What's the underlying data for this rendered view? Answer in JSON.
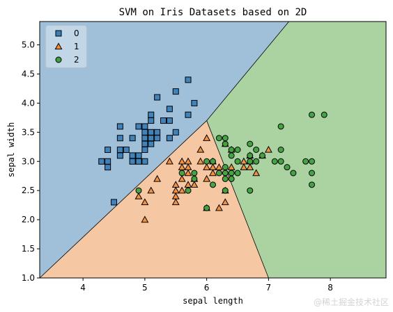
{
  "chart_data": {
    "type": "scatter",
    "title": "SVM on Iris Datasets based on 2D",
    "xlabel": "sepal length",
    "ylabel": "sepal width",
    "xlim": [
      3.3,
      8.9
    ],
    "ylim": [
      1.0,
      5.4
    ],
    "x_ticks": [
      4,
      5,
      6,
      7,
      8
    ],
    "y_ticks": [
      1.0,
      1.5,
      2.0,
      2.5,
      3.0,
      3.5,
      4.0,
      4.5,
      5.0
    ],
    "legend_position": "top-left",
    "decision_regions": [
      {
        "class": "0",
        "color": "#a0c0da",
        "polygon": [
          [
            3.3,
            1.0
          ],
          [
            3.3,
            5.4
          ],
          [
            7.33,
            5.4
          ],
          [
            6.0,
            3.7
          ]
        ]
      },
      {
        "class": "1",
        "color": "#f5c7a2",
        "polygon": [
          [
            3.3,
            1.0
          ],
          [
            6.0,
            3.7
          ],
          [
            7.0,
            1.0
          ]
        ]
      },
      {
        "class": "2",
        "color": "#abd3a2",
        "polygon": [
          [
            6.0,
            3.7
          ],
          [
            7.33,
            5.4
          ],
          [
            8.9,
            5.4
          ],
          [
            8.9,
            1.0
          ],
          [
            7.0,
            1.0
          ]
        ]
      }
    ],
    "series": [
      {
        "name": "0",
        "marker": "square",
        "color": "#3b7fb8",
        "points": [
          [
            4.3,
            3.0
          ],
          [
            4.4,
            2.9
          ],
          [
            4.4,
            3.0
          ],
          [
            4.4,
            3.2
          ],
          [
            4.5,
            2.3
          ],
          [
            4.6,
            3.1
          ],
          [
            4.6,
            3.2
          ],
          [
            4.6,
            3.4
          ],
          [
            4.6,
            3.6
          ],
          [
            4.7,
            3.2
          ],
          [
            4.8,
            3.0
          ],
          [
            4.8,
            3.1
          ],
          [
            4.8,
            3.4
          ],
          [
            4.9,
            3.0
          ],
          [
            4.9,
            3.1
          ],
          [
            4.9,
            3.6
          ],
          [
            5.0,
            3.0
          ],
          [
            5.0,
            3.2
          ],
          [
            5.0,
            3.3
          ],
          [
            5.0,
            3.4
          ],
          [
            5.0,
            3.5
          ],
          [
            5.0,
            3.6
          ],
          [
            5.1,
            3.3
          ],
          [
            5.1,
            3.4
          ],
          [
            5.1,
            3.5
          ],
          [
            5.1,
            3.7
          ],
          [
            5.1,
            3.8
          ],
          [
            5.2,
            3.4
          ],
          [
            5.2,
            3.5
          ],
          [
            5.2,
            4.1
          ],
          [
            5.3,
            3.7
          ],
          [
            5.4,
            3.4
          ],
          [
            5.4,
            3.7
          ],
          [
            5.4,
            3.9
          ],
          [
            5.5,
            3.5
          ],
          [
            5.5,
            4.2
          ],
          [
            5.7,
            3.8
          ],
          [
            5.7,
            4.4
          ],
          [
            5.8,
            4.0
          ]
        ]
      },
      {
        "name": "1",
        "marker": "triangle",
        "color": "#f28e3a",
        "points": [
          [
            4.9,
            2.4
          ],
          [
            5.0,
            2.0
          ],
          [
            5.0,
            2.3
          ],
          [
            5.1,
            2.5
          ],
          [
            5.2,
            2.7
          ],
          [
            5.4,
            3.0
          ],
          [
            5.5,
            2.3
          ],
          [
            5.5,
            2.4
          ],
          [
            5.5,
            2.5
          ],
          [
            5.5,
            2.6
          ],
          [
            5.6,
            2.5
          ],
          [
            5.6,
            2.7
          ],
          [
            5.6,
            2.9
          ],
          [
            5.6,
            3.0
          ],
          [
            5.7,
            2.6
          ],
          [
            5.7,
            2.8
          ],
          [
            5.7,
            2.9
          ],
          [
            5.7,
            3.0
          ],
          [
            5.8,
            2.6
          ],
          [
            5.8,
            2.7
          ],
          [
            5.9,
            3.0
          ],
          [
            5.9,
            3.2
          ],
          [
            6.0,
            2.2
          ],
          [
            6.0,
            2.7
          ],
          [
            6.0,
            2.9
          ],
          [
            6.0,
            3.4
          ],
          [
            6.1,
            2.8
          ],
          [
            6.1,
            2.9
          ],
          [
            6.1,
            3.0
          ],
          [
            6.2,
            2.2
          ],
          [
            6.2,
            2.9
          ],
          [
            6.3,
            2.3
          ],
          [
            6.3,
            2.5
          ],
          [
            6.3,
            3.3
          ],
          [
            6.4,
            2.9
          ],
          [
            6.4,
            3.2
          ],
          [
            6.6,
            2.9
          ],
          [
            6.6,
            3.0
          ],
          [
            6.7,
            2.9
          ],
          [
            6.7,
            3.0
          ],
          [
            6.7,
            3.1
          ],
          [
            6.8,
            2.8
          ],
          [
            6.9,
            3.1
          ],
          [
            7.0,
            3.2
          ]
        ]
      },
      {
        "name": "2",
        "marker": "circle",
        "color": "#3ea13e",
        "points": [
          [
            4.9,
            2.5
          ],
          [
            5.6,
            2.8
          ],
          [
            5.7,
            2.5
          ],
          [
            5.8,
            2.7
          ],
          [
            5.8,
            2.8
          ],
          [
            6.0,
            2.2
          ],
          [
            6.0,
            3.0
          ],
          [
            6.1,
            2.6
          ],
          [
            6.1,
            3.0
          ],
          [
            6.2,
            2.8
          ],
          [
            6.2,
            3.4
          ],
          [
            6.3,
            2.5
          ],
          [
            6.3,
            2.7
          ],
          [
            6.3,
            2.8
          ],
          [
            6.3,
            2.9
          ],
          [
            6.3,
            3.3
          ],
          [
            6.3,
            3.4
          ],
          [
            6.4,
            2.7
          ],
          [
            6.4,
            2.8
          ],
          [
            6.4,
            3.1
          ],
          [
            6.4,
            3.2
          ],
          [
            6.5,
            2.8
          ],
          [
            6.5,
            3.0
          ],
          [
            6.5,
            3.2
          ],
          [
            6.7,
            2.5
          ],
          [
            6.7,
            3.0
          ],
          [
            6.7,
            3.1
          ],
          [
            6.7,
            3.3
          ],
          [
            6.8,
            3.0
          ],
          [
            6.8,
            3.2
          ],
          [
            6.9,
            3.1
          ],
          [
            7.1,
            3.0
          ],
          [
            7.2,
            3.0
          ],
          [
            7.2,
            3.2
          ],
          [
            7.2,
            3.6
          ],
          [
            7.3,
            2.9
          ],
          [
            7.4,
            2.8
          ],
          [
            7.6,
            3.0
          ],
          [
            7.7,
            2.6
          ],
          [
            7.7,
            2.8
          ],
          [
            7.7,
            3.0
          ],
          [
            7.7,
            3.8
          ],
          [
            7.9,
            3.8
          ]
        ]
      }
    ]
  },
  "watermark": "@稀土掘金技术社区"
}
